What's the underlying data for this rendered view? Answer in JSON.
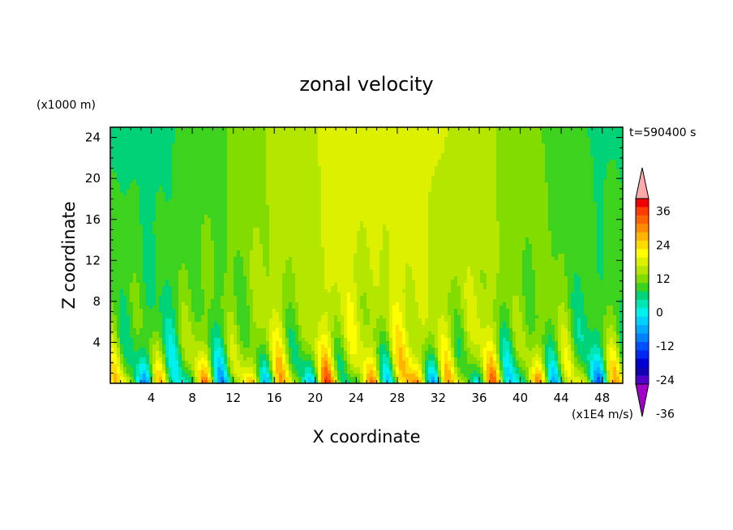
{
  "chart_data": {
    "type": "heatmap",
    "title": "zonal velocity",
    "xlabel": "X coordinate",
    "ylabel": "Z coordinate",
    "x_unit": "(x1E4 m/s)",
    "y_unit": "(x1000 m)",
    "time_label": "t=590400 s",
    "xlim": [
      0,
      50
    ],
    "ylim": [
      0,
      25
    ],
    "xticks": [
      4,
      8,
      12,
      16,
      20,
      24,
      28,
      32,
      36,
      40,
      44,
      48
    ],
    "yticks": [
      4,
      8,
      12,
      16,
      20,
      24
    ],
    "colorbar": {
      "levels": [
        -42,
        -39,
        -36,
        -33,
        -30,
        -27,
        -24,
        -21,
        -18,
        -15,
        -12,
        -9,
        -6,
        -3,
        0,
        3,
        6,
        9,
        12,
        15,
        18,
        21,
        24,
        27,
        30,
        33,
        36,
        39,
        42
      ],
      "tick_labels": [
        "36",
        "24",
        "12",
        "0",
        "-12",
        "-24",
        "-36"
      ],
      "tick_values": [
        36,
        24,
        12,
        0,
        -12,
        -24,
        -36
      ],
      "colors_low_to_high": [
        "#a000c8",
        "#5000c8",
        "#1400b4",
        "#0000d2",
        "#0028f0",
        "#0050ff",
        "#0082ff",
        "#00aaff",
        "#00d2ff",
        "#00f0f0",
        "#00e6b4",
        "#00d278",
        "#3cd21e",
        "#82dc00",
        "#b4e600",
        "#dcf000",
        "#ffff00",
        "#ffdc00",
        "#ffb400",
        "#ff8c00",
        "#ff6400",
        "#ff3c00",
        "#f00000",
        "#ffaaaa"
      ]
    },
    "grid": false
  }
}
